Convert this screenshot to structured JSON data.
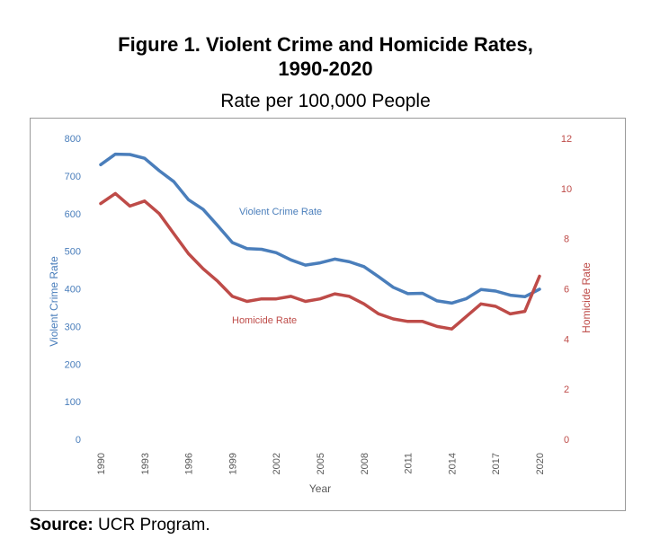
{
  "figure": {
    "title_line1": "Figure 1. Violent Crime and Homicide Rates,",
    "title_line2": "1990-2020",
    "subtitle": "Rate per 100,000 People"
  },
  "source": {
    "label": "Source:",
    "text": "UCR Program."
  },
  "chart_data": {
    "type": "line",
    "xlabel": "Year",
    "ylabel_left": "Violent Crime Rate",
    "ylabel_right": "Homicide Rate",
    "ylim_left": [
      0,
      800
    ],
    "ylim_right": [
      0,
      12
    ],
    "yticks_left": [
      0,
      100,
      200,
      300,
      400,
      500,
      600,
      700,
      800
    ],
    "yticks_right": [
      0,
      2,
      4,
      6,
      8,
      10,
      12
    ],
    "x": [
      1990,
      1991,
      1992,
      1993,
      1994,
      1995,
      1996,
      1997,
      1998,
      1999,
      2000,
      2001,
      2002,
      2003,
      2004,
      2005,
      2006,
      2007,
      2008,
      2009,
      2010,
      2011,
      2012,
      2013,
      2014,
      2015,
      2016,
      2017,
      2018,
      2019,
      2020
    ],
    "xticks": [
      "1990",
      "1993",
      "1996",
      "1999",
      "2002",
      "2005",
      "2008",
      "2011",
      "2014",
      "2017",
      "2020"
    ],
    "grid": false,
    "series": [
      {
        "name": "Violent Crime Rate",
        "axis": "left",
        "color": "#4a7ebb",
        "values": [
          730,
          758,
          757,
          747,
          714,
          685,
          637,
          611,
          568,
          523,
          507,
          505,
          496,
          477,
          463,
          469,
          479,
          472,
          459,
          432,
          404,
          387,
          388,
          368,
          362,
          374,
          398,
          394,
          383,
          379,
          399
        ]
      },
      {
        "name": "Homicide Rate",
        "axis": "right",
        "color": "#be4b48",
        "values": [
          9.4,
          9.8,
          9.3,
          9.5,
          9.0,
          8.2,
          7.4,
          6.8,
          6.3,
          5.7,
          5.5,
          5.6,
          5.6,
          5.7,
          5.5,
          5.6,
          5.8,
          5.7,
          5.4,
          5.0,
          4.8,
          4.7,
          4.7,
          4.5,
          4.4,
          4.9,
          5.4,
          5.3,
          5.0,
          5.1,
          6.5
        ]
      }
    ]
  }
}
